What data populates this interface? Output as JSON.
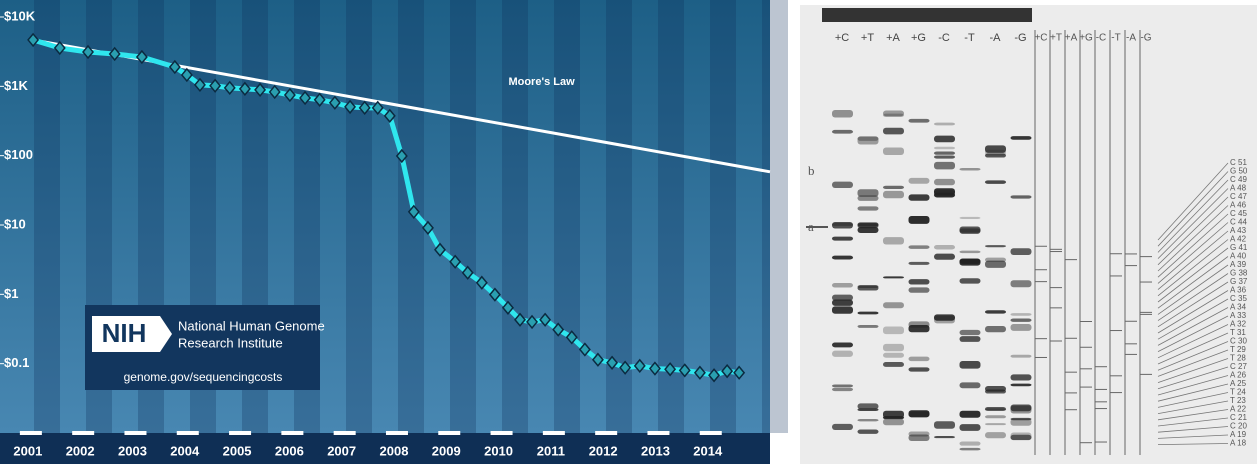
{
  "chart_data": {
    "type": "line",
    "log_scale": true,
    "xlim": [
      2000.62,
      2015.19
    ],
    "xticks": [
      2001,
      2002,
      2003,
      2004,
      2005,
      2006,
      2007,
      2008,
      2009,
      2010,
      2011,
      2012,
      2013,
      2014
    ],
    "ylim": [
      0.01,
      10000
    ],
    "yticks": [
      {
        "value": 10000,
        "label": "$10K"
      },
      {
        "value": 1000,
        "label": "$1K"
      },
      {
        "value": 100,
        "label": "$100"
      },
      {
        "value": 10,
        "label": "$10"
      },
      {
        "value": 1,
        "label": "$1"
      },
      {
        "value": 0.1,
        "label": "$0.1"
      }
    ],
    "series": [
      {
        "color": "#2fe6ee",
        "x": [
          2001.1,
          2001.61,
          2002.15,
          2002.66,
          2003.18,
          2003.81,
          2004.04,
          2004.29,
          2004.58,
          2004.86,
          2005.15,
          2005.44,
          2005.72,
          2006.01,
          2006.3,
          2006.58,
          2006.87,
          2007.16,
          2007.44,
          2007.69,
          2007.92,
          2008.15,
          2008.38,
          2008.65,
          2008.88,
          2009.17,
          2009.41,
          2009.68,
          2009.93,
          2010.18,
          2010.41,
          2010.64,
          2010.89,
          2011.14,
          2011.4,
          2011.65,
          2011.9,
          2012.17,
          2012.42,
          2012.7,
          2012.99,
          2013.28,
          2013.56,
          2013.85,
          2014.12,
          2014.37,
          2014.6
        ],
        "values": [
          4670,
          3570,
          3130,
          2930,
          2650,
          1900,
          1460,
          1050,
          1020,
          950,
          920,
          890,
          830,
          750,
          680,
          640,
          580,
          505,
          490,
          490,
          375,
          99,
          15.5,
          9.1,
          4.4,
          2.95,
          2.05,
          1.47,
          0.99,
          0.64,
          0.43,
          0.4,
          0.43,
          0.31,
          0.24,
          0.16,
          0.114,
          0.103,
          0.0875,
          0.093,
          0.085,
          0.083,
          0.08,
          0.074,
          0.068,
          0.078,
          0.074
        ]
      },
      {
        "name": "Moore's Law",
        "color": "#ffffff",
        "x": [
          2001.1,
          2015.19
        ],
        "values": [
          4670,
          58.5
        ]
      }
    ],
    "logo": {
      "mark": "NIH",
      "line1": "National Human Genome",
      "line2": "Research Institute",
      "url": "genome.gov/sequencingcosts"
    }
  },
  "gel": {
    "lanes": [
      "+C",
      "+T",
      "+A",
      "+G",
      "-C",
      "-T",
      "-A",
      "-G"
    ],
    "lanes_right": [
      "+C",
      "+T",
      "+A",
      "+G",
      "-C",
      "-T",
      "-A",
      "-G"
    ],
    "marks": [
      "b",
      "a"
    ],
    "sequence": [
      "C 51",
      "G 50",
      "C 49",
      "A 48",
      "C 47",
      "A 46",
      "C 45",
      "C 44",
      "A 43",
      "A 42",
      "G 41",
      "A 40",
      "A 39",
      "G 38",
      "G 37",
      "A 36",
      "C 35",
      "A 34",
      "A 33",
      "A 32",
      "T 31",
      "C 30",
      "T 29",
      "T 28",
      "C 27",
      "A 26",
      "A 25",
      "T 24",
      "T 23",
      "A 22",
      "C 21",
      "C 20",
      "A 19",
      "A 18"
    ]
  }
}
